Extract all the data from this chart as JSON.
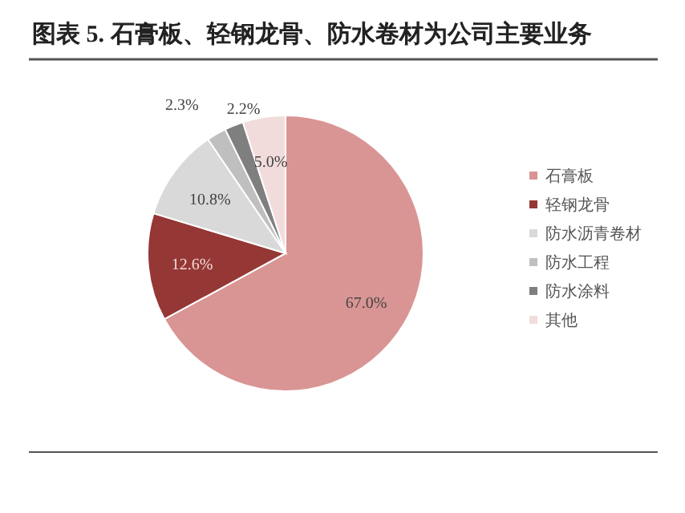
{
  "chart_data": {
    "type": "pie",
    "title": "图表 5. 石膏板、轻钢龙骨、防水卷材为公司主要业务",
    "categories": [
      "石膏板",
      "轻钢龙骨",
      "防水沥青卷材",
      "防水工程",
      "防水涂料",
      "其他"
    ],
    "values": [
      67.0,
      12.6,
      10.8,
      2.3,
      2.2,
      5.0
    ],
    "colors": [
      "#d99594",
      "#953735",
      "#d9d9d9",
      "#bfbfbf",
      "#7f7f7f",
      "#f2dcdb"
    ],
    "value_labels": [
      "67.0%",
      "12.6%",
      "10.8%",
      "2.3%",
      "2.2%",
      "5.0%"
    ],
    "legend": "right"
  }
}
